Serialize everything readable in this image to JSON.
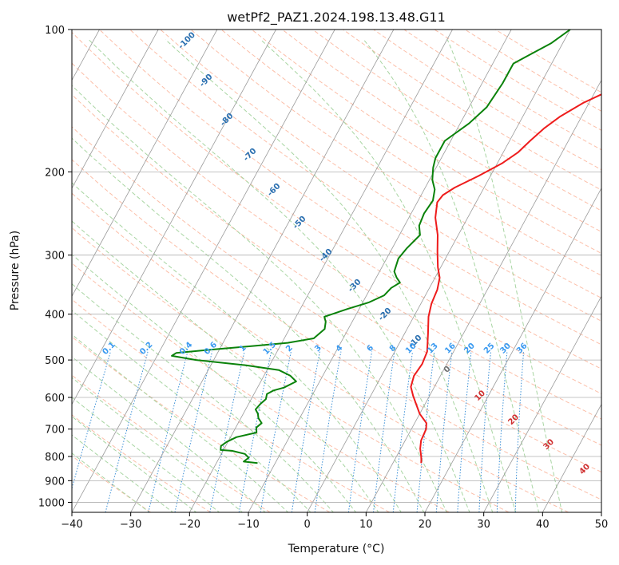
{
  "chart_data": {
    "type": "line",
    "title": "wetPf2_PAZ1.2024.198.13.48.G11",
    "xlabel": "Temperature (°C)",
    "ylabel": "Pressure (hPa)",
    "xlim": [
      -40,
      50
    ],
    "ylim": [
      1050,
      100
    ],
    "y_scale": "log",
    "grid": true,
    "x_ticks": [
      "−40",
      "−30",
      "−20",
      "−10",
      "0",
      "10",
      "20",
      "30",
      "40",
      "50"
    ],
    "x_tick_values": [
      -40,
      -30,
      -20,
      -10,
      0,
      10,
      20,
      30,
      40,
      50
    ],
    "y_ticks": [
      "100",
      "200",
      "300",
      "400",
      "500",
      "600",
      "700",
      "800",
      "900",
      "1000"
    ],
    "y_tick_values": [
      100,
      200,
      300,
      400,
      500,
      600,
      700,
      800,
      900,
      1000
    ],
    "series": [
      {
        "color": "#ee1c1c",
        "points": [
          [
            14.8,
            826
          ],
          [
            14.5,
            812
          ],
          [
            14.2,
            800
          ],
          [
            13.3,
            770
          ],
          [
            12.7,
            740
          ],
          [
            12.5,
            700
          ],
          [
            12.0,
            680
          ],
          [
            10.0,
            650
          ],
          [
            8.5,
            620
          ],
          [
            7.2,
            595
          ],
          [
            6.0,
            570
          ],
          [
            5.5,
            540
          ],
          [
            5.8,
            510
          ],
          [
            5.5,
            480
          ],
          [
            4.0,
            440
          ],
          [
            2.5,
            405
          ],
          [
            1.8,
            380
          ],
          [
            1.5,
            355
          ],
          [
            0.8,
            335
          ],
          [
            -0.5,
            318
          ],
          [
            -2.0,
            295
          ],
          [
            -3.5,
            272
          ],
          [
            -5.5,
            250
          ],
          [
            -6.6,
            232
          ],
          [
            -6.3,
            224
          ],
          [
            -5.0,
            216
          ],
          [
            -2.0,
            204
          ],
          [
            0.8,
            192
          ],
          [
            2.5,
            182
          ],
          [
            3.5,
            172
          ],
          [
            4.7,
            162
          ],
          [
            6.3,
            153
          ],
          [
            9.0,
            143
          ],
          [
            13.0,
            133
          ],
          [
            16.5,
            123
          ],
          [
            18.5,
            113
          ],
          [
            19.8,
            103
          ],
          [
            20.1,
            100
          ]
        ]
      },
      {
        "color": "#0a820a",
        "points": [
          [
            -13.0,
            826
          ],
          [
            -15.5,
            820
          ],
          [
            -15.0,
            805
          ],
          [
            -16.0,
            790
          ],
          [
            -18.5,
            778
          ],
          [
            -20.5,
            775
          ],
          [
            -20.8,
            760
          ],
          [
            -20.2,
            745
          ],
          [
            -19.0,
            728
          ],
          [
            -16.0,
            712
          ],
          [
            -16.5,
            695
          ],
          [
            -16.0,
            680
          ],
          [
            -17.0,
            664
          ],
          [
            -17.5,
            650
          ],
          [
            -18.3,
            636
          ],
          [
            -18.0,
            620
          ],
          [
            -17.5,
            605
          ],
          [
            -17.8,
            590
          ],
          [
            -17.0,
            580
          ],
          [
            -15.5,
            572
          ],
          [
            -14.0,
            555
          ],
          [
            -15.5,
            540
          ],
          [
            -18.0,
            525
          ],
          [
            -24.0,
            513
          ],
          [
            -33.0,
            500
          ],
          [
            -37.5,
            490
          ],
          [
            -37.0,
            483
          ],
          [
            -31.0,
            475
          ],
          [
            -24.5,
            467
          ],
          [
            -19.0,
            460
          ],
          [
            -15.0,
            450
          ],
          [
            -14.0,
            430
          ],
          [
            -14.5,
            415
          ],
          [
            -15.2,
            405
          ],
          [
            -12.0,
            390
          ],
          [
            -9.0,
            378
          ],
          [
            -7.0,
            365
          ],
          [
            -6.5,
            352
          ],
          [
            -5.5,
            343
          ],
          [
            -6.5,
            335
          ],
          [
            -7.5,
            325
          ],
          [
            -8.0,
            305
          ],
          [
            -7.5,
            290
          ],
          [
            -6.5,
            272
          ],
          [
            -7.5,
            260
          ],
          [
            -7.8,
            245
          ],
          [
            -7.5,
            230
          ],
          [
            -8.2,
            218
          ],
          [
            -9.5,
            208
          ],
          [
            -10.5,
            196
          ],
          [
            -11.0,
            187
          ],
          [
            -11.0,
            172
          ],
          [
            -8.5,
            158
          ],
          [
            -7.0,
            146
          ],
          [
            -6.5,
            130
          ],
          [
            -6.5,
            118
          ],
          [
            -4.5,
            113
          ],
          [
            -2.0,
            107
          ],
          [
            0.0,
            100
          ]
        ]
      }
    ],
    "dry_adiabat_labels": [
      "-100",
      "-90",
      "-80",
      "-70",
      "-60",
      "-50",
      "-40",
      "-30",
      "-20",
      "-10"
    ],
    "mixing_ratio_labels": [
      "0.1",
      "0.2",
      "0.4",
      "0.6",
      "1",
      "1.5",
      "2",
      "3",
      "4",
      "6",
      "8",
      "10",
      "13",
      "16",
      "20",
      "25",
      "30",
      "36"
    ],
    "moist_adiabat_labels": [
      "0",
      "10",
      "20",
      "30",
      "40"
    ],
    "colors": {
      "dry_adiabat": "#fcbfa9",
      "moist_adiabat": "#a8d5a2",
      "mixing_ratio": "#3a8fd6",
      "isotherm": "#9a9a9a",
      "dry_label": "#2a6fb0",
      "mixing_label": "#3a9af0",
      "moist_label_warm": "#d03030",
      "moist_label_zero": "#707070"
    }
  }
}
